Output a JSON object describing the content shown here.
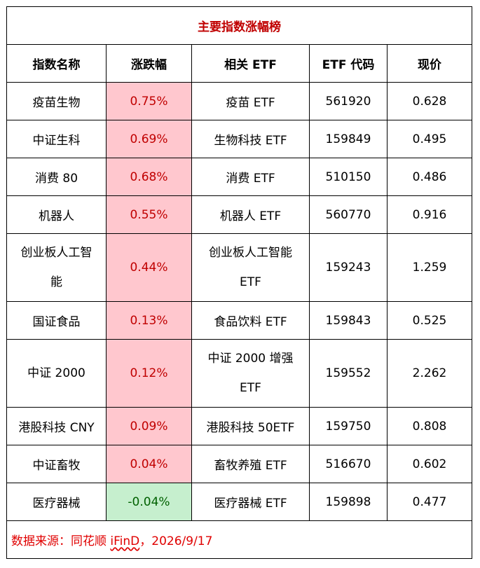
{
  "title": "主要指数涨幅榜",
  "headers": [
    "指数名称",
    "涨跌幅",
    "相关 ETF",
    "ETF 代码",
    "现价"
  ],
  "rows": [
    {
      "index": "疫苗生物",
      "change": "0.75%",
      "etf": "疫苗 ETF",
      "code": "561920",
      "price": "0.628",
      "direction": "up"
    },
    {
      "index": "中证生科",
      "change": "0.69%",
      "etf": "生物科技 ETF",
      "code": "159849",
      "price": "0.495",
      "direction": "up"
    },
    {
      "index": "消费 80",
      "change": "0.68%",
      "etf": "消费 ETF",
      "code": "510150",
      "price": "0.486",
      "direction": "up"
    },
    {
      "index": "机器人",
      "change": "0.55%",
      "etf": "机器人 ETF",
      "code": "560770",
      "price": "0.916",
      "direction": "up"
    },
    {
      "index": "创业板人工智能",
      "change": "0.44%",
      "etf": "创业板人工智能ETF",
      "code": "159243",
      "price": "1.259",
      "direction": "up"
    },
    {
      "index": "国证食品",
      "change": "0.13%",
      "etf": "食品饮料 ETF",
      "code": "159843",
      "price": "0.525",
      "direction": "up"
    },
    {
      "index": "中证 2000",
      "change": "0.12%",
      "etf": "中证 2000 增强ETF",
      "code": "159552",
      "price": "2.262",
      "direction": "up"
    },
    {
      "index": "港股科技 CNY",
      "change": "0.09%",
      "etf": "港股科技 50ETF",
      "code": "159750",
      "price": "0.808",
      "direction": "up"
    },
    {
      "index": "中证畜牧",
      "change": "0.04%",
      "etf": "畜牧养殖 ETF",
      "code": "516670",
      "price": "0.602",
      "direction": "up"
    },
    {
      "index": "医疗器械",
      "change": "-0.04%",
      "etf": "医疗器械 ETF",
      "code": "159898",
      "price": "0.477",
      "direction": "down"
    }
  ],
  "source": {
    "prefix": "数据来源：同花顺 ",
    "brand": "iFinD",
    "suffix": "，2026/9/17"
  },
  "colors": {
    "title": "#c00000",
    "up_bg": "#ffc7ce",
    "up_text": "#c00000",
    "down_bg": "#c6efce",
    "down_text": "#006100",
    "source_text": "#e00000"
  }
}
